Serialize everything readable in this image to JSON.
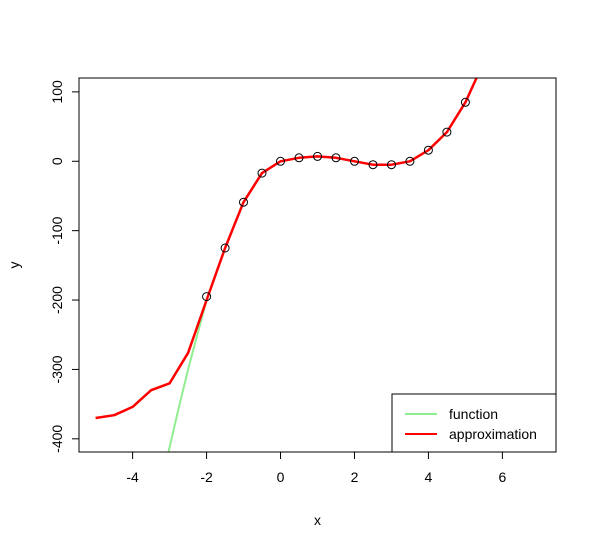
{
  "chart_data": {
    "type": "line",
    "title": "",
    "xlabel": "x",
    "ylabel": "y",
    "xlim": [
      -5.45,
      7.45
    ],
    "ylim": [
      -419,
      120
    ],
    "x_ticks": [
      -4,
      -2,
      0,
      2,
      4,
      6
    ],
    "x_tick_labels": [
      "-4",
      "-2",
      "0",
      "2",
      "4",
      "6"
    ],
    "y_ticks": [
      -400,
      -300,
      -200,
      -100,
      0,
      100
    ],
    "y_tick_labels": [
      "-400",
      "-300",
      "-200",
      "-100",
      "0",
      "100"
    ],
    "grid": false,
    "legend_position": "bottom-right",
    "legend": [
      {
        "label": "function",
        "color": "#90ee90"
      },
      {
        "label": "approximation",
        "color": "#ff0000"
      }
    ],
    "series": [
      {
        "name": "function",
        "color": "#90ee90",
        "x": [
          -3.03,
          -2.75,
          -2.5,
          -2.25,
          -2.0
        ],
        "y": [
          -419,
          -355,
          -300,
          -250,
          -200
        ]
      },
      {
        "name": "approximation",
        "color": "#ff0000",
        "x": [
          -5.0,
          -4.5,
          -4.0,
          -3.5,
          -3.0,
          -2.5,
          -2.0,
          -1.5,
          -1.0,
          -0.5,
          0.0,
          0.5,
          1.0,
          1.5,
          2.0,
          2.5,
          3.0,
          3.5,
          4.0,
          4.5,
          5.0,
          5.3
        ],
        "y": [
          -370,
          -366,
          -354,
          -330,
          -320,
          -276,
          -200,
          -125,
          -59,
          -17,
          0,
          5,
          7,
          5,
          0,
          -5,
          -5,
          0,
          16,
          42,
          85,
          120
        ]
      }
    ],
    "points": {
      "name": "",
      "color": "#000000",
      "x": [
        -2.0,
        -1.5,
        -1.0,
        -0.5,
        0.0,
        0.5,
        1.0,
        1.5,
        2.0,
        2.5,
        3.0,
        3.5,
        4.0,
        4.5,
        5.0
      ],
      "y": [
        -195,
        -125,
        -59,
        -17,
        0,
        5,
        7,
        5,
        0,
        -5,
        -5,
        0,
        16,
        42,
        85
      ]
    }
  }
}
